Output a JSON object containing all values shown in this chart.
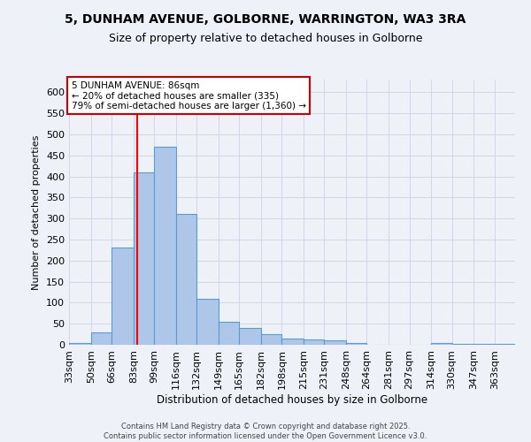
{
  "title_line1": "5, DUNHAM AVENUE, GOLBORNE, WARRINGTON, WA3 3RA",
  "title_line2": "Size of property relative to detached houses in Golborne",
  "xlabel": "Distribution of detached houses by size in Golborne",
  "ylabel": "Number of detached properties",
  "bin_labels": [
    "33sqm",
    "50sqm",
    "66sqm",
    "83sqm",
    "99sqm",
    "116sqm",
    "132sqm",
    "149sqm",
    "165sqm",
    "182sqm",
    "198sqm",
    "215sqm",
    "231sqm",
    "248sqm",
    "264sqm",
    "281sqm",
    "297sqm",
    "314sqm",
    "330sqm",
    "347sqm",
    "363sqm"
  ],
  "bar_values": [
    5,
    30,
    230,
    410,
    470,
    310,
    110,
    55,
    40,
    25,
    15,
    13,
    10,
    4,
    0,
    0,
    0,
    4,
    3,
    2,
    3
  ],
  "bar_color": "#aec6e8",
  "bar_edge_color": "#5b9bd5",
  "ylim": [
    0,
    630
  ],
  "yticks": [
    0,
    50,
    100,
    150,
    200,
    250,
    300,
    350,
    400,
    450,
    500,
    550,
    600
  ],
  "red_line_x": 86,
  "bin_edges_values": [
    33,
    50,
    66,
    83,
    99,
    116,
    132,
    149,
    165,
    182,
    198,
    215,
    231,
    248,
    264,
    281,
    297,
    314,
    330,
    347,
    363,
    379
  ],
  "annotation_title": "5 DUNHAM AVENUE: 86sqm",
  "annotation_line2": "← 20% of detached houses are smaller (335)",
  "annotation_line3": "79% of semi-detached houses are larger (1,360) →",
  "annotation_box_color": "#ffffff",
  "annotation_box_edge": "#cc0000",
  "footer_line1": "Contains HM Land Registry data © Crown copyright and database right 2025.",
  "footer_line2": "Contains public sector information licensed under the Open Government Licence v3.0.",
  "bg_color": "#eef2f8",
  "grid_color": "#d0d8e8"
}
